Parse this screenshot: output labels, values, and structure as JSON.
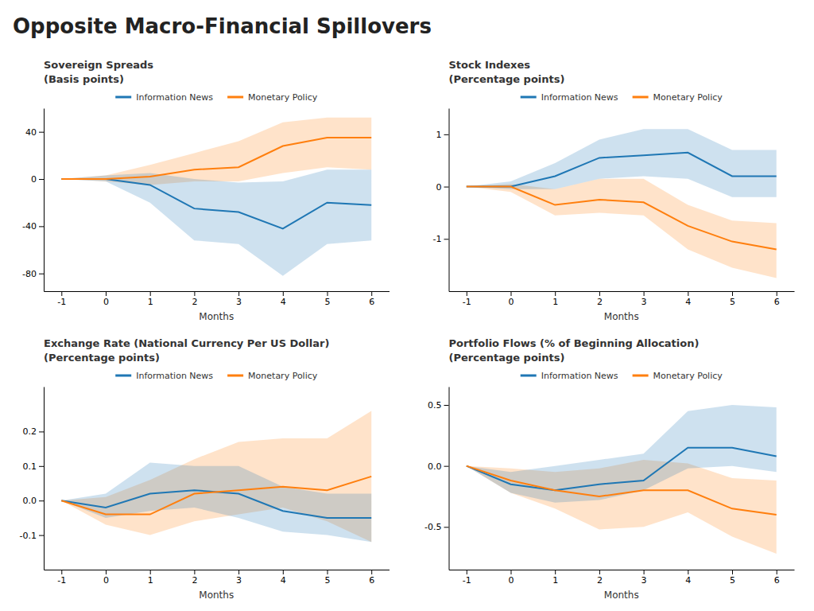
{
  "title": "Opposite Macro-Financial Spillovers",
  "chart_data": [
    {
      "type": "line",
      "title": "Sovereign Spreads",
      "subtitle": "(Basis points)",
      "xlabel": "Months",
      "x": [
        -1,
        0,
        1,
        2,
        3,
        4,
        5,
        6
      ],
      "xlim": [
        -1.4,
        6.4
      ],
      "xticks": [
        -1,
        0,
        1,
        2,
        3,
        4,
        5,
        6
      ],
      "ylim": [
        -95,
        60
      ],
      "yticks": [
        -80,
        -40,
        0,
        40
      ],
      "grid": false,
      "legend": "top",
      "series": [
        {
          "name": "Information News",
          "values": [
            0,
            0,
            -5,
            -25,
            -28,
            -42,
            -20,
            -22
          ],
          "lower": [
            0,
            -2,
            -20,
            -52,
            -55,
            -82,
            -55,
            -52
          ],
          "upper": [
            0,
            3,
            5,
            0,
            -3,
            -2,
            8,
            8
          ]
        },
        {
          "name": "Monetary Policy",
          "values": [
            0,
            0,
            2,
            8,
            10,
            28,
            35,
            35
          ],
          "lower": [
            0,
            -2,
            -5,
            -2,
            -2,
            5,
            10,
            8
          ],
          "upper": [
            0,
            3,
            12,
            22,
            32,
            48,
            52,
            52
          ]
        }
      ]
    },
    {
      "type": "line",
      "title": "Stock Indexes",
      "subtitle": "(Percentage points)",
      "xlabel": "Months",
      "x": [
        -1,
        0,
        1,
        2,
        3,
        4,
        5,
        6
      ],
      "xlim": [
        -1.4,
        6.4
      ],
      "xticks": [
        -1,
        0,
        1,
        2,
        3,
        4,
        5,
        6
      ],
      "ylim": [
        -2.0,
        1.5
      ],
      "yticks": [
        -1,
        0,
        1
      ],
      "grid": false,
      "legend": "top",
      "series": [
        {
          "name": "Information News",
          "values": [
            0,
            0,
            0.2,
            0.55,
            0.6,
            0.65,
            0.2,
            0.2
          ],
          "lower": [
            0,
            -0.05,
            -0.05,
            0.15,
            0.2,
            0.15,
            -0.2,
            -0.2
          ],
          "upper": [
            0,
            0.1,
            0.45,
            0.9,
            1.1,
            1.1,
            0.7,
            0.7
          ]
        },
        {
          "name": "Monetary Policy",
          "values": [
            0,
            0,
            -0.35,
            -0.25,
            -0.3,
            -0.75,
            -1.05,
            -1.2
          ],
          "lower": [
            0,
            -0.1,
            -0.55,
            -0.5,
            -0.55,
            -1.2,
            -1.55,
            -1.75
          ],
          "upper": [
            0,
            0.05,
            -0.05,
            0.15,
            0.15,
            -0.35,
            -0.65,
            -0.7
          ]
        }
      ]
    },
    {
      "type": "line",
      "title": "Exchange Rate (National Currency Per US Dollar)",
      "subtitle": "(Percentage points)",
      "xlabel": "Months",
      "x": [
        -1,
        0,
        1,
        2,
        3,
        4,
        5,
        6
      ],
      "xlim": [
        -1.4,
        6.4
      ],
      "xticks": [
        -1,
        0,
        1,
        2,
        3,
        4,
        5,
        6
      ],
      "ylim": [
        -0.2,
        0.33
      ],
      "yticks": [
        -0.1,
        {
          "value": 0.0,
          "label": "0.0"
        },
        0.1,
        0.2
      ],
      "grid": false,
      "legend": "top",
      "series": [
        {
          "name": "Information News",
          "values": [
            0,
            -0.02,
            0.02,
            0.03,
            0.02,
            -0.03,
            -0.05,
            -0.05
          ],
          "lower": [
            0,
            -0.05,
            -0.03,
            -0.02,
            -0.05,
            -0.09,
            -0.1,
            -0.12
          ],
          "upper": [
            0,
            0.02,
            0.11,
            0.1,
            0.1,
            0.04,
            0.02,
            0.02
          ]
        },
        {
          "name": "Monetary Policy",
          "values": [
            0,
            -0.04,
            -0.04,
            0.02,
            0.03,
            0.04,
            0.03,
            0.07
          ],
          "lower": [
            0,
            -0.07,
            -0.1,
            -0.06,
            -0.04,
            -0.02,
            -0.06,
            -0.12
          ],
          "upper": [
            0,
            0.01,
            0.06,
            0.12,
            0.17,
            0.18,
            0.18,
            0.26
          ]
        }
      ]
    },
    {
      "type": "line",
      "title": "Portfolio Flows (% of Beginning Allocation)",
      "subtitle": "(Percentage points)",
      "xlabel": "Months",
      "x": [
        -1,
        0,
        1,
        2,
        3,
        4,
        5,
        6
      ],
      "xlim": [
        -1.4,
        6.4
      ],
      "xticks": [
        -1,
        0,
        1,
        2,
        3,
        4,
        5,
        6
      ],
      "ylim": [
        -0.85,
        0.65
      ],
      "yticks": [
        -0.5,
        {
          "value": 0.0,
          "label": "0.0"
        },
        0.5
      ],
      "grid": false,
      "legend": "top",
      "series": [
        {
          "name": "Information News",
          "values": [
            0,
            -0.15,
            -0.2,
            -0.15,
            -0.12,
            0.15,
            0.15,
            0.08
          ],
          "lower": [
            0,
            -0.22,
            -0.3,
            -0.28,
            -0.2,
            -0.02,
            0.0,
            -0.05
          ],
          "upper": [
            0,
            -0.05,
            0.0,
            0.05,
            0.1,
            0.45,
            0.5,
            0.48
          ]
        },
        {
          "name": "Monetary Policy",
          "values": [
            0,
            -0.12,
            -0.2,
            -0.25,
            -0.2,
            -0.2,
            -0.35,
            -0.4
          ],
          "lower": [
            0,
            -0.22,
            -0.35,
            -0.52,
            -0.5,
            -0.38,
            -0.58,
            -0.72
          ],
          "upper": [
            0,
            -0.02,
            -0.05,
            -0.02,
            0.05,
            0.02,
            -0.1,
            -0.12
          ]
        }
      ]
    }
  ]
}
